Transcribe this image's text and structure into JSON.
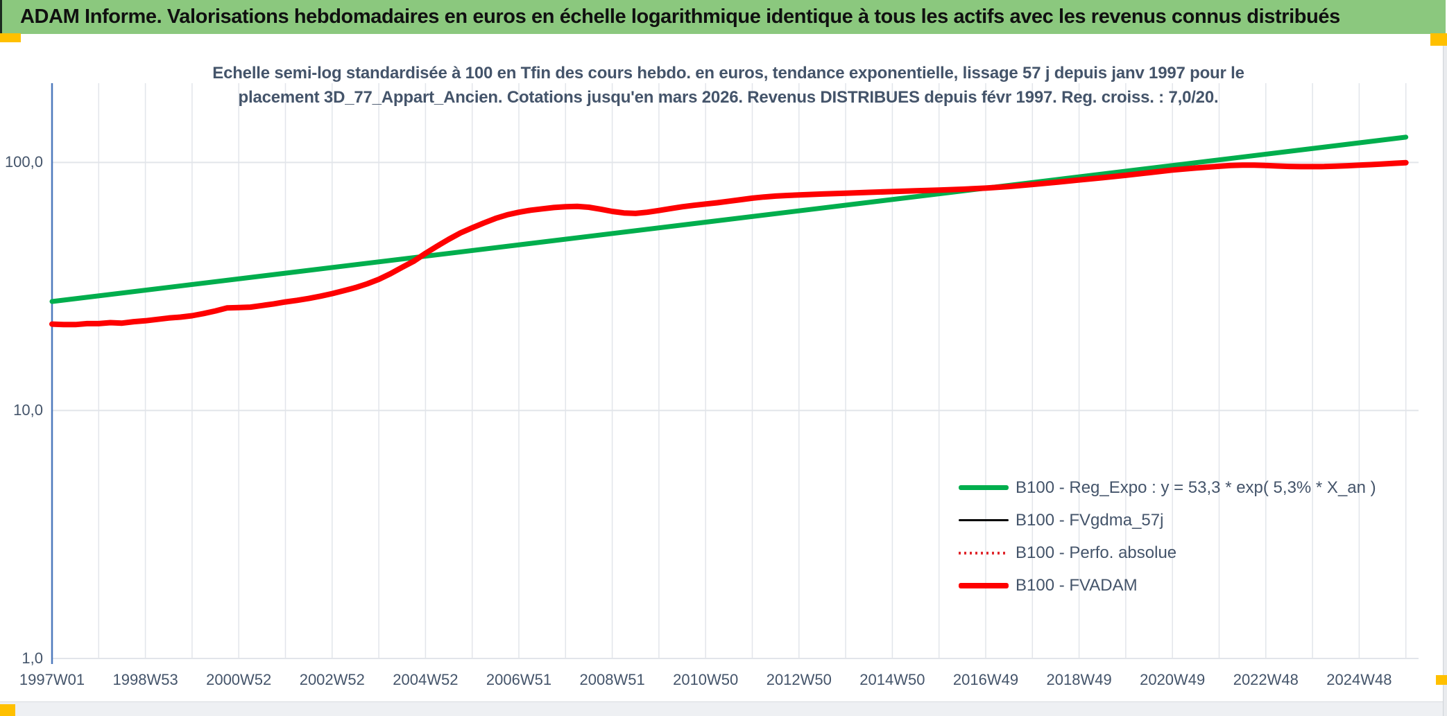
{
  "header": {
    "title": "ADAM Informe. Valorisations hebdomadaires en euros en échelle logarithmique identique à tous les actifs avec les revenus connus distribués",
    "bg_color": "#8BC87E",
    "handle_color": "#FFC000"
  },
  "chart": {
    "subtitle_line1": "Echelle semi-log standardisée à 100 en Tfin des cours hebdo. en euros, tendance exponentielle, lissage 57 j depuis janv 1997 pour le",
    "subtitle_line2": "placement 3D_77_Appart_Ancien. Cotations jusqu'en mars 2026. Revenus DISTRIBUES depuis févr 1997. Reg. croiss. : 7,0/20.",
    "text_color": "#44546A",
    "axis_color": "#4D79BC",
    "grid_color": "#E2E5EA"
  },
  "chart_data": {
    "type": "line",
    "y_scale": "log10",
    "ylim": [
      1,
      210
    ],
    "xlim_labels": [
      "1997W01",
      "2026W10"
    ],
    "grid": true,
    "legend_position": "inside-lower-right",
    "y_ticks": [
      {
        "label": "100,0",
        "value": 100
      },
      {
        "label": "10,0",
        "value": 10
      },
      {
        "label": "1,0",
        "value": 1
      }
    ],
    "x_ticks": [
      {
        "label": "1997W01",
        "t": 1997
      },
      {
        "label": "1998W53",
        "t": 1999
      },
      {
        "label": "2000W52",
        "t": 2001
      },
      {
        "label": "2002W52",
        "t": 2003
      },
      {
        "label": "2004W52",
        "t": 2005
      },
      {
        "label": "2006W51",
        "t": 2007
      },
      {
        "label": "2008W51",
        "t": 2009
      },
      {
        "label": "2010W50",
        "t": 2011
      },
      {
        "label": "2012W50",
        "t": 2013
      },
      {
        "label": "2014W50",
        "t": 2015
      },
      {
        "label": "2016W49",
        "t": 2017
      },
      {
        "label": "2018W49",
        "t": 2019
      },
      {
        "label": "2020W49",
        "t": 2021
      },
      {
        "label": "2022W48",
        "t": 2023
      },
      {
        "label": "2024W48",
        "t": 2025
      }
    ],
    "grid_years": {
      "start": 1997,
      "end": 2026,
      "step": 1
    },
    "series": [
      {
        "name": "B100 - Reg_Expo : y = 53,3 * exp( 5,3% *  X_an )",
        "color": "#00AE4D",
        "width": 7,
        "dash": null,
        "x": [
          1997.0,
          2026.0
        ],
        "v": [
          27.5,
          126.5
        ]
      },
      {
        "name": "B100 - FVgdma_57j",
        "color": "#000000",
        "width": 3,
        "dash": null,
        "coincident_with": "B100 - FVADAM"
      },
      {
        "name": "B100 - Perfo. absolue",
        "color": "#E0282E",
        "width": 2,
        "dash": "2 5",
        "coincident_with": "B100 - FVADAM"
      },
      {
        "name": "B100 - FVADAM",
        "color": "#FE0000",
        "width": 8,
        "dash": null,
        "x": [
          1997.0,
          1997.25,
          1997.5,
          1997.75,
          1998.0,
          1998.25,
          1998.5,
          1998.75,
          1999.0,
          1999.25,
          1999.5,
          1999.75,
          2000.0,
          2000.25,
          2000.5,
          2000.75,
          2001.0,
          2001.25,
          2001.5,
          2001.75,
          2002.0,
          2002.25,
          2002.5,
          2002.75,
          2003.0,
          2003.25,
          2003.5,
          2003.75,
          2004.0,
          2004.25,
          2004.5,
          2004.75,
          2005.0,
          2005.25,
          2005.5,
          2005.75,
          2006.0,
          2006.25,
          2006.5,
          2006.75,
          2007.0,
          2007.25,
          2007.5,
          2007.75,
          2008.0,
          2008.25,
          2008.5,
          2008.75,
          2009.0,
          2009.25,
          2009.5,
          2009.75,
          2010.0,
          2010.25,
          2010.5,
          2010.75,
          2011.0,
          2011.25,
          2011.5,
          2011.75,
          2012.0,
          2012.25,
          2012.5,
          2012.75,
          2013.0,
          2013.5,
          2014.0,
          2014.5,
          2015.0,
          2015.5,
          2016.0,
          2016.5,
          2017.0,
          2017.5,
          2018.0,
          2018.5,
          2019.0,
          2019.5,
          2020.0,
          2020.5,
          2021.0,
          2021.5,
          2022.0,
          2022.25,
          2022.5,
          2022.75,
          2023.0,
          2023.25,
          2023.5,
          2023.75,
          2024.0,
          2024.25,
          2024.5,
          2024.75,
          2025.0,
          2025.25,
          2025.5,
          2025.75,
          2026.0
        ],
        "v": [
          22.3,
          22.2,
          22.2,
          22.4,
          22.4,
          22.6,
          22.5,
          22.8,
          23.0,
          23.3,
          23.6,
          23.8,
          24.1,
          24.6,
          25.2,
          25.9,
          26.0,
          26.1,
          26.5,
          26.9,
          27.4,
          27.8,
          28.3,
          28.9,
          29.6,
          30.4,
          31.3,
          32.4,
          33.8,
          35.6,
          37.8,
          40.0,
          43.0,
          46.0,
          49.0,
          52.0,
          54.5,
          57.0,
          59.5,
          61.5,
          63.0,
          64.2,
          65.0,
          65.8,
          66.3,
          66.5,
          66.0,
          64.8,
          63.5,
          62.6,
          62.3,
          63.0,
          64.0,
          65.2,
          66.3,
          67.2,
          68.0,
          68.8,
          69.8,
          70.8,
          71.8,
          72.6,
          73.2,
          73.6,
          74.0,
          74.6,
          75.2,
          75.8,
          76.3,
          76.9,
          77.4,
          78.0,
          78.8,
          80.0,
          81.5,
          83.2,
          85.0,
          86.8,
          88.8,
          91.0,
          93.2,
          95.0,
          96.5,
          97.2,
          97.6,
          97.5,
          97.2,
          96.8,
          96.4,
          96.2,
          96.2,
          96.3,
          96.6,
          97.0,
          97.5,
          98.0,
          98.6,
          99.2,
          99.8
        ]
      }
    ]
  }
}
